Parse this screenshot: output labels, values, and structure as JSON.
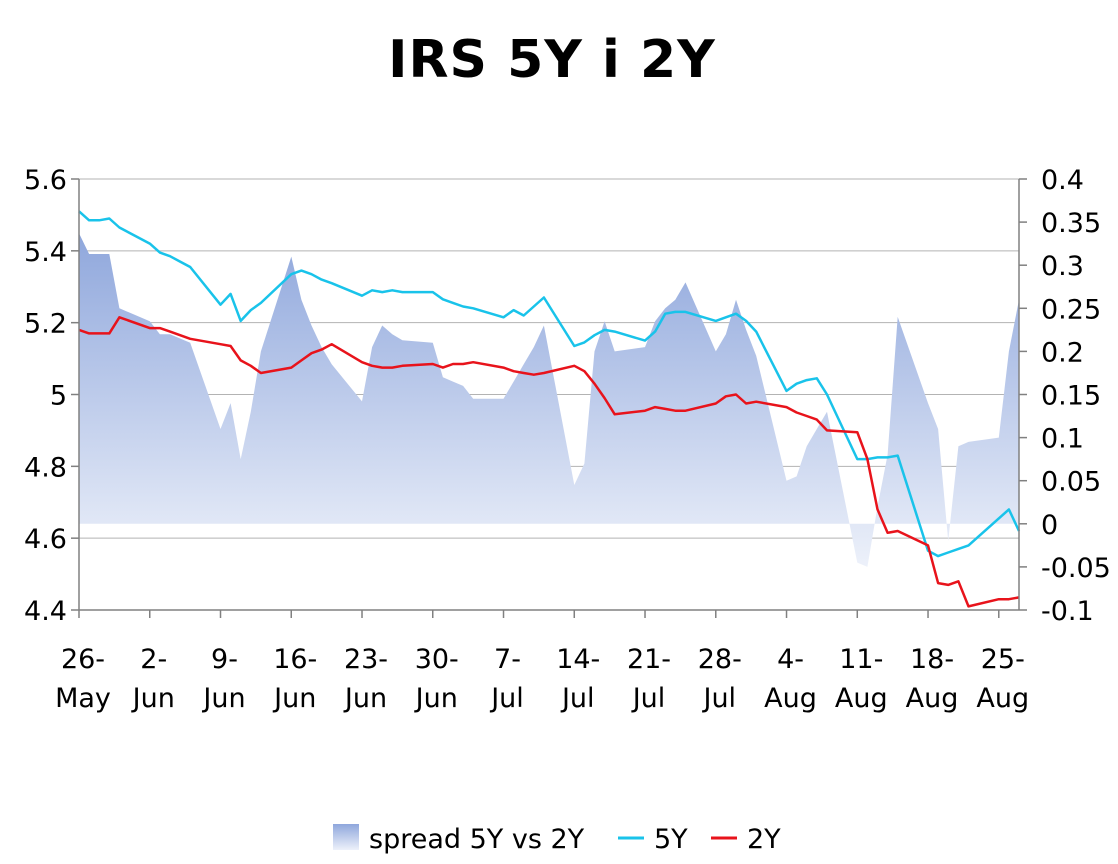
{
  "chart_data": {
    "type": "area+line",
    "title": "IRS 5Y i 2Y",
    "x_axis": {
      "date_range": [
        "2008-05-26",
        "2008-08-27"
      ],
      "ticks": [
        {
          "date": "2008-05-26",
          "line1": "26-",
          "line2": "May"
        },
        {
          "date": "2008-06-02",
          "line1": "2-",
          "line2": "Jun"
        },
        {
          "date": "2008-06-09",
          "line1": "9-",
          "line2": "Jun"
        },
        {
          "date": "2008-06-16",
          "line1": "16-",
          "line2": "Jun"
        },
        {
          "date": "2008-06-23",
          "line1": "23-",
          "line2": "Jun"
        },
        {
          "date": "2008-06-30",
          "line1": "30-",
          "line2": "Jun"
        },
        {
          "date": "2008-07-07",
          "line1": "7-",
          "line2": "Jul"
        },
        {
          "date": "2008-07-14",
          "line1": "14-",
          "line2": "Jul"
        },
        {
          "date": "2008-07-21",
          "line1": "21-",
          "line2": "Jul"
        },
        {
          "date": "2008-07-28",
          "line1": "28-",
          "line2": "Jul"
        },
        {
          "date": "2008-08-04",
          "line1": "4-",
          "line2": "Aug"
        },
        {
          "date": "2008-08-11",
          "line1": "11-",
          "line2": "Aug"
        },
        {
          "date": "2008-08-18",
          "line1": "18-",
          "line2": "Aug"
        },
        {
          "date": "2008-08-25",
          "line1": "25-",
          "line2": "Aug"
        }
      ]
    },
    "y_left": {
      "min": 4.4,
      "max": 5.6,
      "ticks": [
        {
          "v": 4.4,
          "label": "4.4"
        },
        {
          "v": 4.6,
          "label": "4.6"
        },
        {
          "v": 4.8,
          "label": "4.8"
        },
        {
          "v": 5.0,
          "label": "5"
        },
        {
          "v": 5.2,
          "label": "5.2"
        },
        {
          "v": 5.4,
          "label": "5.4"
        },
        {
          "v": 5.6,
          "label": "5.6"
        }
      ]
    },
    "y_right": {
      "min": -0.1,
      "max": 0.4,
      "ticks": [
        {
          "v": -0.1,
          "label": "-0.1"
        },
        {
          "v": -0.05,
          "label": "-0.05"
        },
        {
          "v": 0,
          "label": "0"
        },
        {
          "v": 0.05,
          "label": "0.05"
        },
        {
          "v": 0.1,
          "label": "0.1"
        },
        {
          "v": 0.15,
          "label": "0.15"
        },
        {
          "v": 0.2,
          "label": "0.2"
        },
        {
          "v": 0.25,
          "label": "0.25"
        },
        {
          "v": 0.3,
          "label": "0.3"
        },
        {
          "v": 0.35,
          "label": "0.35"
        },
        {
          "v": 0.4,
          "label": "0.4"
        }
      ]
    },
    "grid": "horizontal",
    "legend_position": "bottom",
    "series": [
      {
        "name": "spread 5Y vs 2Y",
        "kind": "area",
        "axis": "right",
        "color_top": "#8fa7dc",
        "color_bottom": "#edf1fa",
        "dates": [
          "2008-05-26",
          "2008-05-27",
          "2008-05-28",
          "2008-05-29",
          "2008-05-30",
          "2008-06-02",
          "2008-06-03",
          "2008-06-04",
          "2008-06-05",
          "2008-06-06",
          "2008-06-09",
          "2008-06-10",
          "2008-06-11",
          "2008-06-12",
          "2008-06-13",
          "2008-06-16",
          "2008-06-17",
          "2008-06-18",
          "2008-06-19",
          "2008-06-20",
          "2008-06-23",
          "2008-06-24",
          "2008-06-25",
          "2008-06-26",
          "2008-06-27",
          "2008-06-30",
          "2008-07-01",
          "2008-07-02",
          "2008-07-03",
          "2008-07-04",
          "2008-07-07",
          "2008-07-08",
          "2008-07-09",
          "2008-07-10",
          "2008-07-11",
          "2008-07-14",
          "2008-07-15",
          "2008-07-16",
          "2008-07-17",
          "2008-07-18",
          "2008-07-21",
          "2008-07-22",
          "2008-07-23",
          "2008-07-24",
          "2008-07-25",
          "2008-07-28",
          "2008-07-29",
          "2008-07-30",
          "2008-07-31",
          "2008-08-01",
          "2008-08-04",
          "2008-08-05",
          "2008-08-06",
          "2008-08-07",
          "2008-08-08",
          "2008-08-11",
          "2008-08-12",
          "2008-08-13",
          "2008-08-14",
          "2008-08-15",
          "2008-08-18",
          "2008-08-19",
          "2008-08-20",
          "2008-08-21",
          "2008-08-22",
          "2008-08-25",
          "2008-08-26",
          "2008-08-27"
        ],
        "values": [
          0.337,
          0.313,
          0.313,
          0.313,
          0.25,
          0.235,
          0.22,
          0.22,
          0.215,
          0.21,
          0.11,
          0.14,
          0.075,
          0.13,
          0.2,
          0.31,
          0.26,
          0.23,
          0.205,
          0.185,
          0.142,
          0.205,
          0.23,
          0.22,
          0.213,
          0.21,
          0.17,
          0.165,
          0.16,
          0.145,
          0.145,
          0.165,
          0.185,
          0.205,
          0.23,
          0.045,
          0.07,
          0.2,
          0.235,
          0.2,
          0.205,
          0.235,
          0.25,
          0.26,
          0.28,
          0.2,
          0.22,
          0.26,
          0.225,
          0.195,
          0.05,
          0.055,
          0.09,
          0.11,
          0.13,
          -0.045,
          -0.05,
          0.02,
          0.08,
          0.24,
          0.14,
          0.11,
          -0.02,
          0.09,
          0.095,
          0.1,
          0.2,
          0.26
        ]
      },
      {
        "name": "5Y",
        "kind": "line",
        "axis": "left",
        "color": "#19c3ea",
        "dates": [
          "2008-05-26",
          "2008-05-27",
          "2008-05-28",
          "2008-05-29",
          "2008-05-30",
          "2008-06-02",
          "2008-06-03",
          "2008-06-04",
          "2008-06-05",
          "2008-06-06",
          "2008-06-09",
          "2008-06-10",
          "2008-06-11",
          "2008-06-12",
          "2008-06-13",
          "2008-06-16",
          "2008-06-17",
          "2008-06-18",
          "2008-06-19",
          "2008-06-20",
          "2008-06-23",
          "2008-06-24",
          "2008-06-25",
          "2008-06-26",
          "2008-06-27",
          "2008-06-30",
          "2008-07-01",
          "2008-07-02",
          "2008-07-03",
          "2008-07-04",
          "2008-07-07",
          "2008-07-08",
          "2008-07-09",
          "2008-07-10",
          "2008-07-11",
          "2008-07-14",
          "2008-07-15",
          "2008-07-16",
          "2008-07-17",
          "2008-07-18",
          "2008-07-21",
          "2008-07-22",
          "2008-07-23",
          "2008-07-24",
          "2008-07-25",
          "2008-07-28",
          "2008-07-29",
          "2008-07-30",
          "2008-07-31",
          "2008-08-01",
          "2008-08-04",
          "2008-08-05",
          "2008-08-06",
          "2008-08-07",
          "2008-08-08",
          "2008-08-11",
          "2008-08-12",
          "2008-08-13",
          "2008-08-14",
          "2008-08-15",
          "2008-08-18",
          "2008-08-19",
          "2008-08-20",
          "2008-08-21",
          "2008-08-22",
          "2008-08-25",
          "2008-08-26",
          "2008-08-27"
        ],
        "values": [
          5.51,
          5.485,
          5.485,
          5.49,
          5.465,
          5.42,
          5.395,
          5.385,
          5.37,
          5.355,
          5.25,
          5.28,
          5.205,
          5.235,
          5.255,
          5.335,
          5.345,
          5.335,
          5.32,
          5.31,
          5.275,
          5.29,
          5.285,
          5.29,
          5.285,
          5.285,
          5.265,
          5.255,
          5.245,
          5.24,
          5.215,
          5.235,
          5.22,
          5.245,
          5.27,
          5.135,
          5.145,
          5.165,
          5.18,
          5.175,
          5.15,
          5.175,
          5.225,
          5.23,
          5.23,
          5.205,
          5.215,
          5.225,
          5.205,
          5.175,
          5.01,
          5.03,
          5.04,
          5.045,
          5.0,
          4.82,
          4.82,
          4.825,
          4.825,
          4.83,
          4.565,
          4.55,
          4.56,
          4.57,
          4.58,
          4.655,
          4.68,
          4.62
        ]
      },
      {
        "name": "2Y",
        "kind": "line",
        "axis": "left",
        "color": "#e8131b",
        "dates": [
          "2008-05-26",
          "2008-05-27",
          "2008-05-28",
          "2008-05-29",
          "2008-05-30",
          "2008-06-02",
          "2008-06-03",
          "2008-06-04",
          "2008-06-05",
          "2008-06-06",
          "2008-06-09",
          "2008-06-10",
          "2008-06-11",
          "2008-06-12",
          "2008-06-13",
          "2008-06-16",
          "2008-06-17",
          "2008-06-18",
          "2008-06-19",
          "2008-06-20",
          "2008-06-23",
          "2008-06-24",
          "2008-06-25",
          "2008-06-26",
          "2008-06-27",
          "2008-06-30",
          "2008-07-01",
          "2008-07-02",
          "2008-07-03",
          "2008-07-04",
          "2008-07-07",
          "2008-07-08",
          "2008-07-09",
          "2008-07-10",
          "2008-07-11",
          "2008-07-14",
          "2008-07-15",
          "2008-07-16",
          "2008-07-17",
          "2008-07-18",
          "2008-07-21",
          "2008-07-22",
          "2008-07-23",
          "2008-07-24",
          "2008-07-25",
          "2008-07-28",
          "2008-07-29",
          "2008-07-30",
          "2008-07-31",
          "2008-08-01",
          "2008-08-04",
          "2008-08-05",
          "2008-08-06",
          "2008-08-07",
          "2008-08-08",
          "2008-08-11",
          "2008-08-12",
          "2008-08-13",
          "2008-08-14",
          "2008-08-15",
          "2008-08-18",
          "2008-08-19",
          "2008-08-20",
          "2008-08-21",
          "2008-08-22",
          "2008-08-25",
          "2008-08-26",
          "2008-08-27"
        ],
        "values": [
          5.18,
          5.17,
          5.17,
          5.17,
          5.215,
          5.185,
          5.185,
          5.175,
          5.165,
          5.155,
          5.14,
          5.135,
          5.095,
          5.08,
          5.06,
          5.075,
          5.095,
          5.115,
          5.125,
          5.14,
          5.09,
          5.08,
          5.075,
          5.075,
          5.08,
          5.085,
          5.075,
          5.085,
          5.085,
          5.09,
          5.075,
          5.065,
          5.06,
          5.055,
          5.06,
          5.08,
          5.065,
          5.03,
          4.99,
          4.945,
          4.955,
          4.965,
          4.96,
          4.955,
          4.955,
          4.975,
          4.995,
          5.0,
          4.975,
          4.98,
          4.965,
          4.95,
          4.94,
          4.93,
          4.9,
          4.895,
          4.82,
          4.68,
          4.615,
          4.62,
          4.58,
          4.475,
          4.47,
          4.48,
          4.41,
          4.43,
          4.43,
          4.435
        ]
      }
    ]
  }
}
